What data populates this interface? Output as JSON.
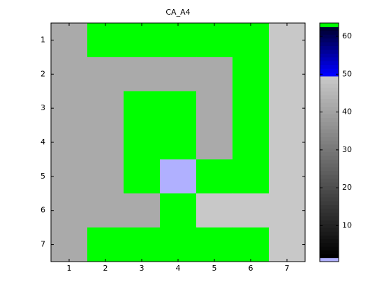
{
  "chart_data": {
    "type": "heatmap",
    "title": "CA_A4",
    "x": [
      1,
      2,
      3,
      4,
      5,
      6,
      7
    ],
    "y": [
      1,
      2,
      3,
      4,
      5,
      6,
      7
    ],
    "values": [
      [
        42,
        63,
        63,
        63,
        63,
        63,
        49
      ],
      [
        42,
        42,
        42,
        42,
        42,
        63,
        49
      ],
      [
        42,
        42,
        63,
        63,
        42,
        63,
        49
      ],
      [
        42,
        42,
        63,
        63,
        42,
        63,
        49
      ],
      [
        42,
        42,
        63,
        1,
        63,
        63,
        49
      ],
      [
        42,
        42,
        42,
        63,
        49,
        49,
        49
      ],
      [
        42,
        63,
        63,
        63,
        63,
        63,
        49
      ]
    ],
    "xlim": [
      0.5,
      7.5
    ],
    "ylim": [
      7.5,
      0.5
    ],
    "xticks": [
      1,
      2,
      3,
      4,
      5,
      6,
      7
    ],
    "yticks": [
      1,
      2,
      3,
      4,
      5,
      6,
      7
    ],
    "clim": [
      0.5,
      63.5
    ],
    "cticks": [
      10,
      20,
      30,
      40,
      50,
      60
    ],
    "colormap": [
      [
        1,
        "#b0b0ff"
      ],
      [
        2,
        "#000000"
      ],
      [
        49,
        "#c8c8c8"
      ],
      [
        50,
        "#0000ff"
      ],
      [
        62,
        "#000033"
      ],
      [
        63,
        "#00ff00"
      ]
    ]
  }
}
